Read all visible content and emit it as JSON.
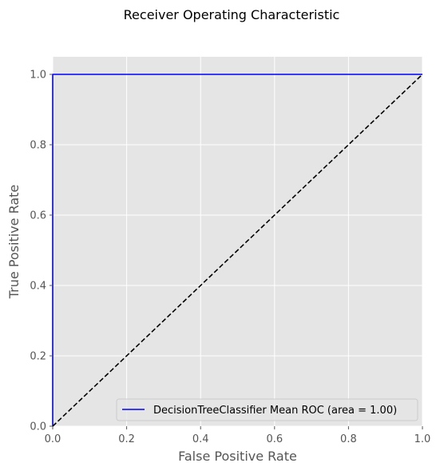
{
  "chart_data": {
    "type": "line",
    "title": "Receiver Operating Characteristic",
    "xlabel": "False Positive Rate",
    "ylabel": "True Positive Rate",
    "xlim": [
      0.0,
      1.0
    ],
    "ylim": [
      0.0,
      1.05
    ],
    "x_ticks": [
      "0.0",
      "0.2",
      "0.4",
      "0.6",
      "0.8",
      "1.0"
    ],
    "y_ticks": [
      "0.0",
      "0.2",
      "0.4",
      "0.6",
      "0.8",
      "1.0"
    ],
    "grid": true,
    "background": "#e5e5e5",
    "grid_color": "#ffffff",
    "legend_position": "lower-right",
    "series": [
      {
        "name": "DecisionTreeClassifier Mean ROC (area = 1.00)",
        "color": "#0000ff",
        "style": "solid",
        "x": [
          0.0,
          0.0,
          1.0
        ],
        "y": [
          0.0,
          1.0,
          1.0
        ]
      },
      {
        "color": "#000000",
        "style": "dashed",
        "x": [
          0.0,
          1.0
        ],
        "y": [
          0.0,
          1.0
        ]
      }
    ]
  }
}
